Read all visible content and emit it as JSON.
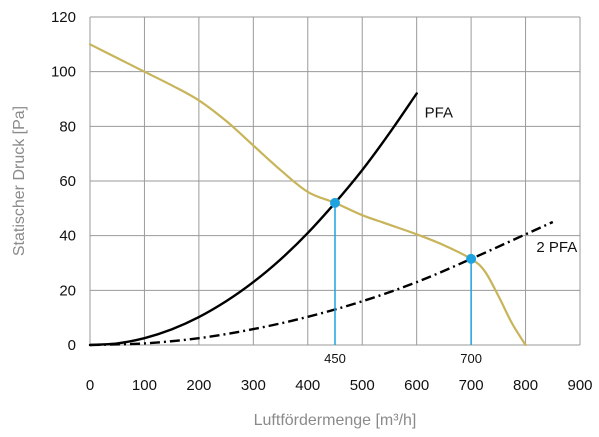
{
  "chart_data": {
    "type": "line",
    "title": "",
    "xlabel": "Luftfördermenge [m³/h]",
    "ylabel": "Statischer Druck [Pa]",
    "xlim": [
      0,
      900
    ],
    "ylim": [
      0,
      120
    ],
    "xticks": [
      0,
      100,
      200,
      300,
      400,
      500,
      600,
      700,
      800,
      900
    ],
    "yticks": [
      0,
      20,
      40,
      60,
      80,
      100,
      120
    ],
    "grid": true,
    "legend": "none",
    "colors": {
      "fan_curve": "#c8b45a",
      "pfa": "#000000",
      "pfa2": "#000000",
      "operating_point": "#1fa3e0",
      "grid": "#9a9a9a"
    },
    "series": [
      {
        "key": "fan_curve",
        "style": "solid",
        "x": [
          0,
          50,
          100,
          150,
          200,
          250,
          300,
          350,
          400,
          450,
          500,
          550,
          600,
          650,
          700,
          725,
          750,
          775,
          800
        ],
        "y": [
          110,
          105,
          100,
          95,
          89.5,
          82,
          73,
          64,
          56,
          52,
          47.5,
          44,
          40.5,
          36.5,
          31.5,
          27,
          18,
          8,
          0
        ]
      },
      {
        "name": "PFA",
        "key": "pfa",
        "style": "solid",
        "x": [
          0,
          50,
          100,
          150,
          200,
          250,
          300,
          350,
          400,
          450,
          500,
          550,
          600
        ],
        "y": [
          0,
          0.6,
          2.5,
          5.7,
          10.2,
          16,
          23,
          31.3,
          41,
          52,
          64,
          77.5,
          92
        ]
      },
      {
        "name": "2 PFA",
        "key": "pfa2",
        "style": "dashdot",
        "x": [
          0,
          100,
          200,
          300,
          400,
          500,
          600,
          700,
          800,
          850
        ],
        "y": [
          0,
          0.6,
          2.5,
          5.8,
          10.3,
          16,
          23,
          31.5,
          40.5,
          45
        ]
      }
    ],
    "operating_points": [
      {
        "x": 450,
        "y": 52,
        "label": "450"
      },
      {
        "x": 700,
        "y": 31.5,
        "label": "700"
      }
    ]
  }
}
